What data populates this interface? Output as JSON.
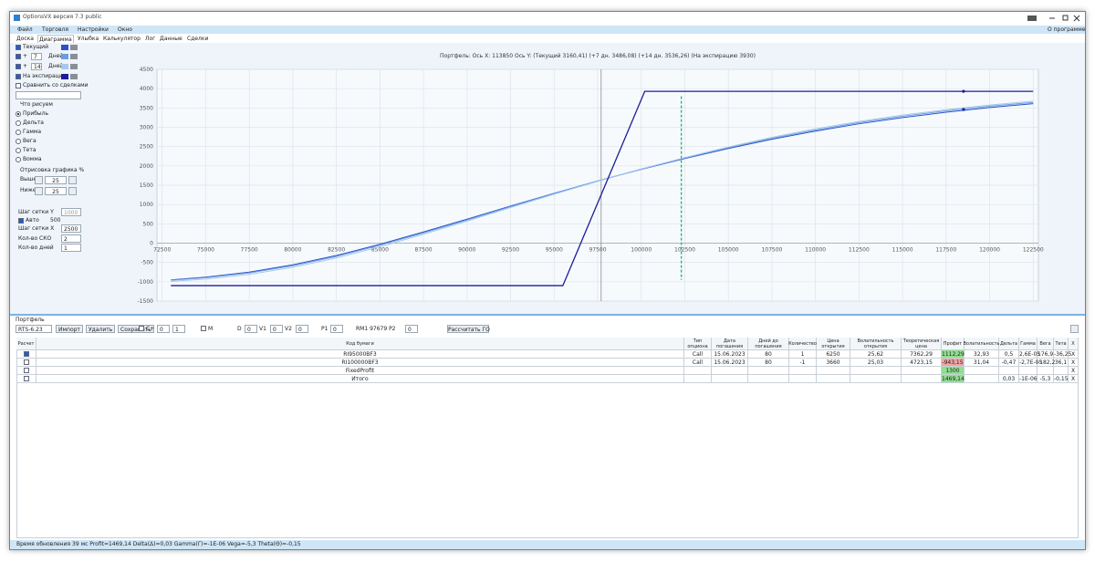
{
  "window": {
    "title": "OptionsVX версия 7.3 public"
  },
  "menu": [
    "Файл",
    "Торговля",
    "Настройки",
    "Окно"
  ],
  "about": "О программе",
  "tabs": [
    "Доска",
    "Диаграмма",
    "Улыбка",
    "Калькулятор",
    "Лог",
    "Данные",
    "Сделки"
  ],
  "panel": {
    "curves": [
      {
        "label": "Текущий"
      },
      {
        "prefix": "+",
        "days": "7",
        "unit": "Дней"
      },
      {
        "prefix": "+",
        "days": "14",
        "unit": "Дней"
      },
      {
        "label": "На экспирацию"
      }
    ],
    "compare": "Сравнить со сделками",
    "draw_title": "Что рисуем",
    "draw_options": [
      "Прибыль",
      "Дельта",
      "Гамма",
      "Вега",
      "Тета",
      "Вомма"
    ],
    "range_title": "Отрисовка графика %",
    "above_label": "Выше",
    "above": "25",
    "below_label": "Ниже",
    "below": "25",
    "grid_y_label": "Шаг сетки Y",
    "grid_y": "1000",
    "auto_label": "Авто",
    "auto": "500",
    "grid_x_label": "Шаг сетки X",
    "grid_x": "2500",
    "sko_label": "Кол-во СКО",
    "sko": "2",
    "days_label": "Кол-во дней",
    "days": "1"
  },
  "chart_data": {
    "type": "line",
    "title": "Портфель: Ось X: 113850 Ось Y:  (Текущий 3160,41)  (+7 дн. 3486,08)  (+14 дн. 3536,26)  (На экспирацию 3930)",
    "series": [
      {
        "color": "#2b50c8",
        "x": [
          73000,
          75000,
          77500,
          80000,
          82500,
          85000,
          87500,
          90000,
          92500,
          95000,
          97500,
          100000,
          102500,
          105000,
          107500,
          110000,
          112500,
          115000,
          117500,
          120000,
          122500
        ],
        "values": [
          -950,
          -880,
          -750,
          -560,
          -320,
          -30,
          290,
          620,
          960,
          1290,
          1610,
          1910,
          2190,
          2450,
          2690,
          2900,
          3090,
          3250,
          3390,
          3510,
          3610
        ]
      },
      {
        "color": "#6a9ee0",
        "x": [
          73000,
          75000,
          77500,
          80000,
          82500,
          85000,
          87500,
          90000,
          92500,
          95000,
          97500,
          100000,
          102500,
          105000,
          107500,
          110000,
          112500,
          115000,
          117500,
          120000,
          122500
        ],
        "values": [
          -960,
          -895,
          -770,
          -585,
          -345,
          -55,
          265,
          600,
          945,
          1285,
          1610,
          1920,
          2205,
          2470,
          2715,
          2930,
          3120,
          3285,
          3425,
          3545,
          3645
        ]
      },
      {
        "color": "#a6c8ee",
        "x": [
          73000,
          75000,
          77500,
          80000,
          82500,
          85000,
          87500,
          90000,
          92500,
          95000,
          97500,
          100000,
          102500,
          105000,
          107500,
          110000,
          112500,
          115000,
          117500,
          120000,
          122500
        ],
        "values": [
          -990,
          -930,
          -810,
          -625,
          -385,
          -95,
          230,
          570,
          920,
          1265,
          1600,
          1920,
          2215,
          2490,
          2740,
          2960,
          3150,
          3315,
          3455,
          3575,
          3675
        ]
      },
      {
        "color": "#1c1c9a",
        "x": [
          73000,
          95500,
          100200,
          122500
        ],
        "values": [
          -1100,
          -1100,
          3930,
          3930
        ]
      }
    ],
    "markers": [
      {
        "x": 118500,
        "y": 3930
      },
      {
        "x": 118500,
        "y": 3460
      }
    ],
    "vlines": [
      {
        "x": 97700,
        "color": "#8a8a8a"
      },
      {
        "x": 102300,
        "color": "#2bb673",
        "dashed": true,
        "y": [
          -950,
          3800
        ]
      }
    ],
    "xlim": [
      72200,
      122800
    ],
    "ylim": [
      -1500,
      4500
    ],
    "xticks": [
      72500,
      75000,
      77500,
      80000,
      82500,
      85000,
      87500,
      90000,
      92500,
      95000,
      97500,
      100000,
      102500,
      105000,
      107500,
      110000,
      112500,
      115000,
      117500,
      120000,
      122500
    ],
    "yticks": [
      -1500,
      -1000,
      -500,
      0,
      500,
      1000,
      1500,
      2000,
      2500,
      3000,
      3500,
      4000,
      4500
    ],
    "grid": true
  },
  "portfolio": {
    "title": "Портфель",
    "instrument": "RTS-6.23",
    "buttons": [
      "Импорт",
      "Удалить",
      "Сохранить"
    ],
    "c_label": "C+",
    "c_values": [
      "0",
      "1"
    ],
    "m_label": "M",
    "fields": [
      {
        "label": "D",
        "value": "0"
      },
      {
        "label": "V1",
        "value": "0"
      },
      {
        "label": "V2",
        "value": "0"
      },
      {
        "label": "P1",
        "value": "0"
      },
      {
        "label": "RM1 97679  P2",
        "value": "0"
      }
    ],
    "calc": "Рассчитать ГО"
  },
  "table": {
    "headers": [
      "Расчет",
      "Код бумаги",
      "Тип опциона",
      "Дата погашения",
      "Дней до погашения",
      "Количество",
      "Цена открытия",
      "Волатильность открытия",
      "Теоретическая цена",
      "Профит",
      "Волатильность",
      "Дельта",
      "Гамма",
      "Вега",
      "Тета",
      "X"
    ],
    "rows": [
      [
        "RI95000BF3",
        "Call",
        "15.06.2023",
        "80",
        "1",
        "6250",
        "25,62",
        "7362,29",
        "1112,29",
        "32,93",
        "0,5",
        "2,6E-05",
        "176,9",
        "-36,25",
        "X"
      ],
      [
        "RI100000BF3",
        "Call",
        "15.06.2023",
        "80",
        "-1",
        "3660",
        "25,03",
        "4723,15",
        "-943,15",
        "31,04",
        "-0,47",
        "-2,7E-05",
        "-182,2",
        "36,1",
        "X"
      ],
      [
        "FixedProfit",
        null,
        null,
        null,
        null,
        null,
        null,
        null,
        "1300",
        null,
        null,
        null,
        null,
        null,
        "X"
      ],
      [
        "Итого",
        null,
        null,
        null,
        null,
        null,
        null,
        null,
        "1469,14",
        null,
        "0,03",
        "-1E-06",
        "-5,3",
        "-0,15",
        "X"
      ]
    ]
  },
  "status": "Время обновления 39 мс  Profit=1469,14 Delta(Δ)=0,03 Gamma(Γ)=-1E-06 Vega=-5,3 Theta(Θ)=-0,15"
}
